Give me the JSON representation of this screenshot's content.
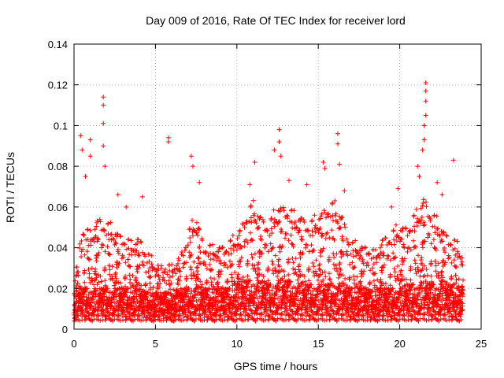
{
  "chart_data": {
    "type": "scatter",
    "title": "Day 009 of 2016, Rate Of TEC Index for receiver lord",
    "xlabel": "GPS time / hours",
    "ylabel": "ROTI / TECUs",
    "xlim": [
      0,
      25
    ],
    "ylim": [
      0,
      0.14
    ],
    "xticks": [
      0,
      5,
      10,
      15,
      20,
      25
    ],
    "xtick_labels": [
      "0",
      "5",
      "10",
      "15",
      "20",
      "25"
    ],
    "yticks": [
      0,
      0.02,
      0.04,
      0.06,
      0.08,
      0.1,
      0.12,
      0.14
    ],
    "ytick_labels": [
      "0",
      "0.02",
      "0.04",
      "0.06",
      "0.08",
      "0.1",
      "0.12",
      "0.14"
    ],
    "grid": true,
    "marker": "plus",
    "point_color": "#ff0000",
    "data_extent_x": [
      0,
      23.9
    ],
    "notable_points": [
      {
        "x": 0.4,
        "y": 0.095
      },
      {
        "x": 0.5,
        "y": 0.088
      },
      {
        "x": 0.7,
        "y": 0.075
      },
      {
        "x": 1.0,
        "y": 0.093
      },
      {
        "x": 1.0,
        "y": 0.085
      },
      {
        "x": 1.8,
        "y": 0.114
      },
      {
        "x": 1.8,
        "y": 0.11
      },
      {
        "x": 1.8,
        "y": 0.101
      },
      {
        "x": 1.8,
        "y": 0.09
      },
      {
        "x": 1.9,
        "y": 0.08
      },
      {
        "x": 2.7,
        "y": 0.066
      },
      {
        "x": 3.2,
        "y": 0.06
      },
      {
        "x": 4.2,
        "y": 0.065
      },
      {
        "x": 5.8,
        "y": 0.094
      },
      {
        "x": 5.8,
        "y": 0.092
      },
      {
        "x": 7.2,
        "y": 0.085
      },
      {
        "x": 7.3,
        "y": 0.08
      },
      {
        "x": 7.7,
        "y": 0.072
      },
      {
        "x": 10.8,
        "y": 0.071
      },
      {
        "x": 11.1,
        "y": 0.082
      },
      {
        "x": 12.3,
        "y": 0.088
      },
      {
        "x": 12.6,
        "y": 0.098
      },
      {
        "x": 12.6,
        "y": 0.092
      },
      {
        "x": 12.7,
        "y": 0.085
      },
      {
        "x": 13.2,
        "y": 0.073
      },
      {
        "x": 14.3,
        "y": 0.071
      },
      {
        "x": 15.3,
        "y": 0.082
      },
      {
        "x": 15.4,
        "y": 0.079
      },
      {
        "x": 16.2,
        "y": 0.096
      },
      {
        "x": 16.2,
        "y": 0.091
      },
      {
        "x": 16.3,
        "y": 0.081
      },
      {
        "x": 16.6,
        "y": 0.068
      },
      {
        "x": 19.5,
        "y": 0.06
      },
      {
        "x": 19.9,
        "y": 0.069
      },
      {
        "x": 21.1,
        "y": 0.08
      },
      {
        "x": 21.2,
        "y": 0.075
      },
      {
        "x": 21.6,
        "y": 0.121
      },
      {
        "x": 21.6,
        "y": 0.117
      },
      {
        "x": 21.6,
        "y": 0.112
      },
      {
        "x": 21.6,
        "y": 0.105
      },
      {
        "x": 21.5,
        "y": 0.1
      },
      {
        "x": 21.5,
        "y": 0.093
      },
      {
        "x": 21.4,
        "y": 0.088
      },
      {
        "x": 22.3,
        "y": 0.072
      },
      {
        "x": 22.6,
        "y": 0.066
      },
      {
        "x": 23.3,
        "y": 0.083
      }
    ],
    "activity_profile": [
      {
        "x": 0,
        "base": 0.01,
        "top": 0.02
      },
      {
        "x": 0.5,
        "base": 0.01,
        "top": 0.05
      },
      {
        "x": 1,
        "base": 0.01,
        "top": 0.045
      },
      {
        "x": 1.5,
        "base": 0.01,
        "top": 0.055
      },
      {
        "x": 2,
        "base": 0.01,
        "top": 0.05
      },
      {
        "x": 2.5,
        "base": 0.01,
        "top": 0.048
      },
      {
        "x": 3,
        "base": 0.01,
        "top": 0.045
      },
      {
        "x": 3.5,
        "base": 0.01,
        "top": 0.04
      },
      {
        "x": 4,
        "base": 0.01,
        "top": 0.045
      },
      {
        "x": 4.5,
        "base": 0.008,
        "top": 0.035
      },
      {
        "x": 5,
        "base": 0.008,
        "top": 0.03
      },
      {
        "x": 5.5,
        "base": 0.008,
        "top": 0.03
      },
      {
        "x": 6,
        "base": 0.008,
        "top": 0.028
      },
      {
        "x": 6.5,
        "base": 0.01,
        "top": 0.035
      },
      {
        "x": 7,
        "base": 0.01,
        "top": 0.045
      },
      {
        "x": 7.5,
        "base": 0.012,
        "top": 0.055
      },
      {
        "x": 8,
        "base": 0.01,
        "top": 0.04
      },
      {
        "x": 8.5,
        "base": 0.01,
        "top": 0.038
      },
      {
        "x": 9,
        "base": 0.01,
        "top": 0.04
      },
      {
        "x": 9.5,
        "base": 0.01,
        "top": 0.04
      },
      {
        "x": 10,
        "base": 0.012,
        "top": 0.045
      },
      {
        "x": 10.5,
        "base": 0.014,
        "top": 0.055
      },
      {
        "x": 11,
        "base": 0.014,
        "top": 0.06
      },
      {
        "x": 11.5,
        "base": 0.014,
        "top": 0.055
      },
      {
        "x": 12,
        "base": 0.012,
        "top": 0.05
      },
      {
        "x": 12.5,
        "base": 0.014,
        "top": 0.06
      },
      {
        "x": 13,
        "base": 0.014,
        "top": 0.06
      },
      {
        "x": 13.5,
        "base": 0.013,
        "top": 0.055
      },
      {
        "x": 14,
        "base": 0.012,
        "top": 0.055
      },
      {
        "x": 14.5,
        "base": 0.012,
        "top": 0.05
      },
      {
        "x": 15,
        "base": 0.012,
        "top": 0.055
      },
      {
        "x": 15.5,
        "base": 0.012,
        "top": 0.06
      },
      {
        "x": 16,
        "base": 0.013,
        "top": 0.06
      },
      {
        "x": 16.5,
        "base": 0.012,
        "top": 0.055
      },
      {
        "x": 17,
        "base": 0.01,
        "top": 0.04
      },
      {
        "x": 17.5,
        "base": 0.01,
        "top": 0.04
      },
      {
        "x": 18,
        "base": 0.01,
        "top": 0.04
      },
      {
        "x": 18.5,
        "base": 0.008,
        "top": 0.035
      },
      {
        "x": 19,
        "base": 0.01,
        "top": 0.045
      },
      {
        "x": 19.5,
        "base": 0.01,
        "top": 0.045
      },
      {
        "x": 20,
        "base": 0.01,
        "top": 0.05
      },
      {
        "x": 20.5,
        "base": 0.012,
        "top": 0.05
      },
      {
        "x": 21,
        "base": 0.012,
        "top": 0.055
      },
      {
        "x": 21.5,
        "base": 0.014,
        "top": 0.065
      },
      {
        "x": 22,
        "base": 0.012,
        "top": 0.055
      },
      {
        "x": 22.5,
        "base": 0.012,
        "top": 0.05
      },
      {
        "x": 23,
        "base": 0.012,
        "top": 0.045
      },
      {
        "x": 23.5,
        "base": 0.012,
        "top": 0.04
      },
      {
        "x": 23.9,
        "base": 0.01,
        "top": 0.035
      }
    ]
  }
}
